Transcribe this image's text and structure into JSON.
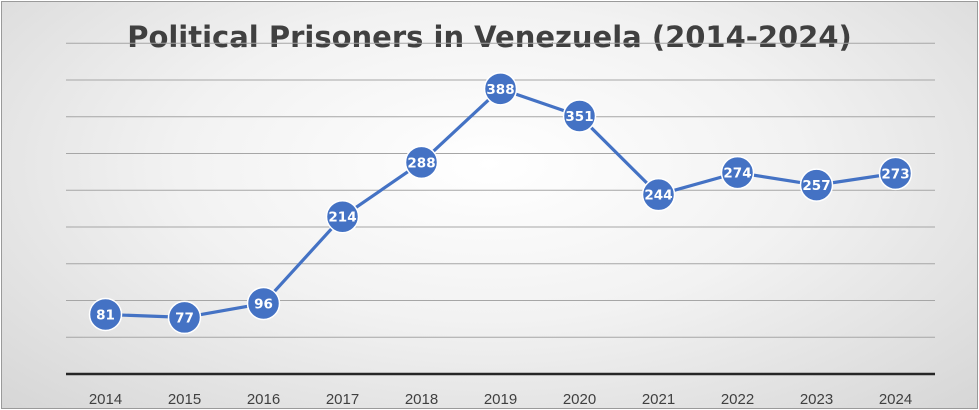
{
  "chart_data": {
    "type": "line",
    "title": "Political Prisoners in Venezuela (2014-2024)",
    "xlabel": "",
    "ylabel": "",
    "categories": [
      "2014",
      "2015",
      "2016",
      "2017",
      "2018",
      "2019",
      "2020",
      "2021",
      "2022",
      "2023",
      "2024"
    ],
    "values": [
      81,
      77,
      96,
      214,
      288,
      388,
      351,
      244,
      274,
      257,
      273
    ],
    "data_labels": [
      "81",
      "77",
      "96",
      "214",
      "288",
      "388",
      "351",
      "244",
      "274",
      "257",
      "273"
    ],
    "ylim": [
      0,
      450
    ],
    "gridlines": true,
    "y_axis_labels_shown": false,
    "legend": "none",
    "colors": {
      "line": "#4472C4",
      "marker_fill": "#4472C4",
      "marker_stroke": "#ffffff",
      "gridline": "#a6a6a6",
      "axis": "#262626"
    }
  }
}
